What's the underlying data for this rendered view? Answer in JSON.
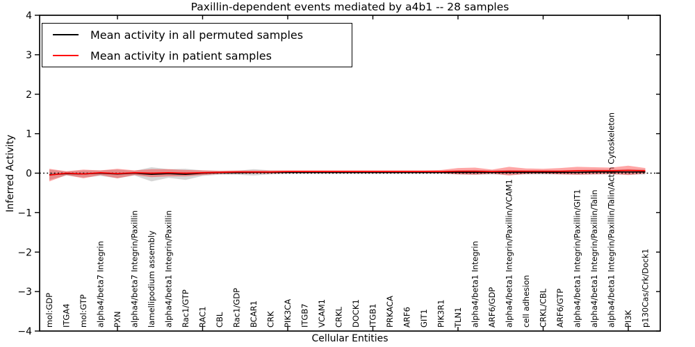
{
  "figure": {
    "title": "Paxillin-dependent events mediated by a4b1 -- 28 samples",
    "xlabel": "Cellular Entities",
    "ylabel": "Inferred Activity",
    "background": "#ffffff"
  },
  "legend": {
    "entries": [
      {
        "label": "Mean activity in all permuted samples",
        "color": "#000000"
      },
      {
        "label": "Mean activity in patient samples",
        "color": "#ff0000"
      }
    ],
    "position": "upper left"
  },
  "chart_data": {
    "type": "line",
    "title": "Paxillin-dependent events mediated by a4b1 -- 28 samples",
    "xlabel": "Cellular Entities",
    "ylabel": "Inferred Activity",
    "ylim": [
      -4,
      4
    ],
    "grid": false,
    "legend_position": "upper left",
    "yticks": [
      {
        "value": 4,
        "label": "4"
      },
      {
        "value": 3,
        "label": "3"
      },
      {
        "value": 2,
        "label": "2"
      },
      {
        "value": 1,
        "label": "1"
      },
      {
        "value": 0,
        "label": "0"
      },
      {
        "value": -1,
        "label": "−1"
      },
      {
        "value": -2,
        "label": "−2"
      },
      {
        "value": -3,
        "label": "−3"
      },
      {
        "value": -4,
        "label": "−4"
      }
    ],
    "xticks_major": [
      5,
      10,
      15,
      20,
      25,
      30,
      35
    ],
    "categories": [
      "mol:GDP",
      "ITGA4",
      "mol:GTP",
      "alpha4/beta7 Integrin",
      "PXN",
      "alpha4/beta7 Integrin/Paxillin",
      "lamellipodium assembly",
      "alpha4/beta1 Integrin/Paxillin",
      "Rac1/GTP",
      "RAC1",
      "CBL",
      "Rac1/GDP",
      "BCAR1",
      "CRK",
      "PIK3CA",
      "ITGB7",
      "VCAM1",
      "CRKL",
      "DOCK1",
      "ITGB1",
      "PRKACA",
      "ARF6",
      "GIT1",
      "PIK3R1",
      "TLN1",
      "alpha4/beta1 Integrin",
      "ARF6/GDP",
      "alpha4/beta1 Integrin/Paxillin/VCAM1",
      "cell adhesion",
      "CRKL/CBL",
      "ARF6/GTP",
      "alpha4/beta1 Integrin/Paxillin/GIT1",
      "alpha4/beta1 Integrin/Paxillin/Talin",
      "alpha4/beta1 Integrin/Paxillin/Talin/Actin Cytoskeleton",
      "PI3K",
      "p130Cas/Crk/Dock1"
    ],
    "series": [
      {
        "name": "Mean activity in all permuted samples",
        "color": "#000000",
        "band_color": "rgba(120,120,120,0.30)",
        "values": [
          -0.04,
          -0.01,
          -0.02,
          0.0,
          -0.02,
          0.0,
          -0.03,
          -0.01,
          -0.03,
          0.0,
          0.01,
          0.01,
          0.02,
          0.02,
          0.02,
          0.02,
          0.02,
          0.02,
          0.02,
          0.02,
          0.02,
          0.02,
          0.02,
          0.02,
          0.02,
          0.02,
          0.02,
          0.02,
          0.02,
          0.02,
          0.02,
          0.02,
          0.03,
          0.03,
          0.03,
          0.03
        ],
        "band_halfwidth": [
          0.13,
          0.05,
          0.09,
          0.07,
          0.11,
          0.06,
          0.18,
          0.11,
          0.14,
          0.07,
          0.05,
          0.05,
          0.08,
          0.05,
          0.04,
          0.04,
          0.04,
          0.04,
          0.04,
          0.04,
          0.04,
          0.04,
          0.04,
          0.04,
          0.05,
          0.06,
          0.05,
          0.06,
          0.05,
          0.05,
          0.05,
          0.06,
          0.06,
          0.06,
          0.07,
          0.06
        ]
      },
      {
        "name": "Mean activity in patient samples",
        "color": "#ff0000",
        "band_color": "rgba(255,0,0,0.35)",
        "values": [
          -0.05,
          0.0,
          -0.02,
          0.01,
          -0.01,
          0.01,
          0.0,
          0.01,
          0.0,
          0.01,
          0.02,
          0.03,
          0.03,
          0.03,
          0.04,
          0.04,
          0.04,
          0.04,
          0.04,
          0.04,
          0.04,
          0.04,
          0.04,
          0.04,
          0.05,
          0.05,
          0.04,
          0.05,
          0.05,
          0.05,
          0.05,
          0.06,
          0.06,
          0.06,
          0.07,
          0.06
        ],
        "band_halfwidth": [
          0.16,
          0.05,
          0.11,
          0.06,
          0.12,
          0.06,
          0.1,
          0.09,
          0.08,
          0.06,
          0.04,
          0.04,
          0.04,
          0.04,
          0.03,
          0.03,
          0.03,
          0.03,
          0.03,
          0.03,
          0.03,
          0.03,
          0.03,
          0.04,
          0.08,
          0.09,
          0.05,
          0.11,
          0.07,
          0.06,
          0.08,
          0.1,
          0.09,
          0.08,
          0.12,
          0.07
        ]
      }
    ],
    "zero_line": {
      "y": 0,
      "style": "dotted",
      "color": "#000000"
    }
  }
}
